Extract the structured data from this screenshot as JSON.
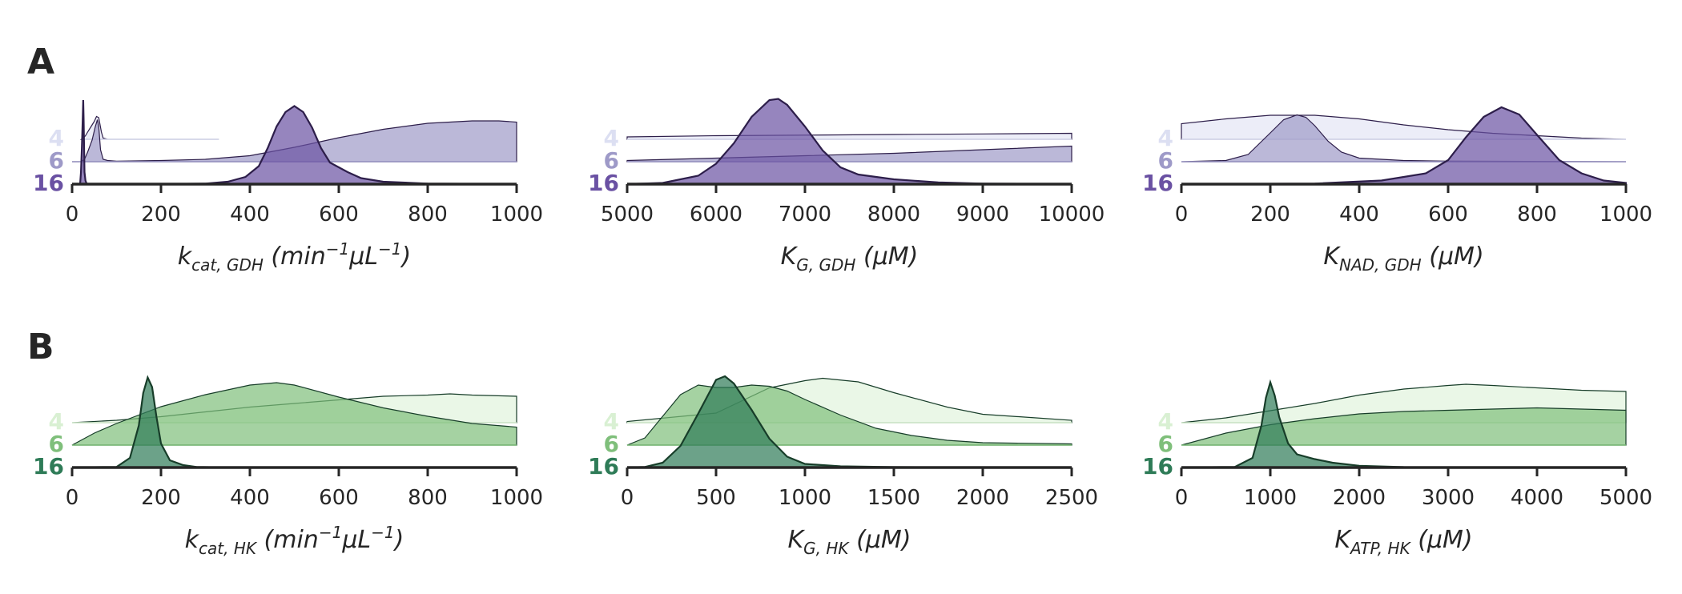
{
  "row_labels": [
    "A",
    "B"
  ],
  "colors": {
    "purple": {
      "4": "#dcdff2",
      "6": "#9e9ac8",
      "16": "#6a51a3",
      "outline": "#2d1e4a"
    },
    "green": {
      "4": "#d9f0d3",
      "6": "#7fbf7b",
      "16": "#2e7b57",
      "outline": "#173d29"
    }
  },
  "chart_data": [
    {
      "type": "area",
      "row": "A",
      "palette": "purple",
      "xlabel_main": "k",
      "xlabel_sub": "cat, GDH",
      "xlabel_unit_parts": [
        " (",
        "min",
        "−1",
        "μL",
        "−1",
        ")"
      ],
      "xlim": [
        0,
        1000
      ],
      "xticks": [
        "0",
        "200",
        "400",
        "600",
        "800",
        "1000"
      ],
      "legend": [
        "4",
        "6",
        "16"
      ],
      "series": [
        {
          "name": "4",
          "x": [
            21,
            25,
            30,
            35,
            40,
            45,
            50,
            55,
            60,
            66,
            70,
            80,
            100,
            150,
            200,
            250,
            300,
            330
          ],
          "y": [
            0,
            0.01,
            0.03,
            0.06,
            0.09,
            0.12,
            0.15,
            0.19,
            0.18,
            0.06,
            0.01,
            0,
            0,
            0,
            0,
            0,
            0,
            0
          ]
        },
        {
          "name": "6",
          "x": [
            0,
            20,
            28,
            35,
            45,
            52,
            57,
            60,
            64,
            70,
            80,
            100,
            200,
            300,
            400,
            500,
            600,
            700,
            800,
            900,
            960,
            1000
          ],
          "y": [
            0,
            0,
            0.02,
            0.08,
            0.18,
            0.29,
            0.35,
            0.29,
            0.1,
            0.02,
            0.01,
            0.005,
            0.01,
            0.02,
            0.05,
            0.12,
            0.2,
            0.27,
            0.32,
            0.34,
            0.34,
            0.33
          ]
        },
        {
          "name": "16",
          "x": [
            0,
            100,
            200,
            300,
            350,
            390,
            420,
            440,
            460,
            480,
            500,
            520,
            540,
            560,
            580,
            600,
            620,
            650,
            700,
            800,
            1000
          ],
          "y": [
            0,
            0,
            0,
            0.005,
            0.02,
            0.06,
            0.15,
            0.3,
            0.48,
            0.6,
            0.65,
            0.6,
            0.47,
            0.3,
            0.18,
            0.14,
            0.1,
            0.05,
            0.02,
            0.005,
            0
          ]
        },
        {
          "name": "16",
          "x": [
            18,
            20,
            22,
            24,
            25,
            26,
            27,
            28,
            30,
            32,
            35
          ],
          "y": [
            0,
            0.1,
            0.3,
            0.55,
            0.7,
            0.55,
            0.3,
            0.1,
            0.03,
            0.01,
            0
          ]
        }
      ]
    },
    {
      "type": "area",
      "row": "A",
      "palette": "purple",
      "xlabel_main": "K",
      "xlabel_sub": "G, GDH",
      "xlabel_unit_parts": [
        " (",
        "μM",
        ")"
      ],
      "xlim": [
        5000,
        10000
      ],
      "xticks": [
        "5000",
        "6000",
        "7000",
        "8000",
        "9000",
        "10000"
      ],
      "legend": [
        "4",
        "6",
        "16"
      ],
      "series": [
        {
          "name": "4",
          "x": [
            5000,
            6000,
            7000,
            8000,
            9000,
            10000
          ],
          "y": [
            0.02,
            0.03,
            0.035,
            0.04,
            0.045,
            0.05
          ]
        },
        {
          "name": "6",
          "x": [
            5000,
            6000,
            7000,
            8000,
            9000,
            10000
          ],
          "y": [
            0.01,
            0.03,
            0.05,
            0.07,
            0.1,
            0.13
          ]
        },
        {
          "name": "16",
          "x": [
            5000,
            5400,
            5800,
            6000,
            6200,
            6400,
            6600,
            6700,
            6800,
            7000,
            7200,
            7400,
            7600,
            8000,
            8500,
            9000,
            10000
          ],
          "y": [
            0,
            0.01,
            0.07,
            0.17,
            0.34,
            0.56,
            0.7,
            0.71,
            0.66,
            0.48,
            0.28,
            0.14,
            0.08,
            0.04,
            0.015,
            0.005,
            0
          ]
        }
      ]
    },
    {
      "type": "area",
      "row": "A",
      "palette": "purple",
      "xlabel_main": "K",
      "xlabel_sub": "NAD, GDH",
      "xlabel_unit_parts": [
        " (",
        "μM",
        ")"
      ],
      "xlim": [
        0,
        1000
      ],
      "xticks": [
        "0",
        "200",
        "400",
        "600",
        "800",
        "1000"
      ],
      "legend": [
        "4",
        "6",
        "16"
      ],
      "series": [
        {
          "name": "4",
          "x": [
            0,
            100,
            200,
            300,
            400,
            500,
            600,
            700,
            800,
            900,
            1000
          ],
          "y": [
            0.13,
            0.17,
            0.2,
            0.2,
            0.17,
            0.12,
            0.08,
            0.05,
            0.03,
            0.01,
            0
          ]
        },
        {
          "name": "6",
          "x": [
            0,
            100,
            150,
            200,
            230,
            260,
            280,
            300,
            330,
            360,
            400,
            500,
            600,
            1000
          ],
          "y": [
            0,
            0.01,
            0.06,
            0.24,
            0.35,
            0.39,
            0.37,
            0.3,
            0.17,
            0.08,
            0.03,
            0.01,
            0.005,
            0
          ]
        },
        {
          "name": "16",
          "x": [
            0,
            300,
            450,
            550,
            600,
            640,
            680,
            720,
            760,
            800,
            850,
            900,
            950,
            1000
          ],
          "y": [
            0,
            0.005,
            0.03,
            0.09,
            0.2,
            0.39,
            0.56,
            0.64,
            0.58,
            0.41,
            0.2,
            0.09,
            0.03,
            0.01
          ]
        }
      ]
    },
    {
      "type": "area",
      "row": "B",
      "palette": "green",
      "xlabel_main": "k",
      "xlabel_sub": "cat, HK",
      "xlabel_unit_parts": [
        " (",
        "min",
        "−1",
        "μL",
        "−1",
        ")"
      ],
      "xlim": [
        0,
        1000
      ],
      "xticks": [
        "0",
        "200",
        "400",
        "600",
        "800",
        "1000"
      ],
      "legend": [
        "4",
        "6",
        "16"
      ],
      "series": [
        {
          "name": "4",
          "x": [
            0,
            100,
            200,
            300,
            400,
            500,
            600,
            700,
            800,
            850,
            900,
            1000
          ],
          "y": [
            0,
            0.02,
            0.05,
            0.09,
            0.13,
            0.16,
            0.19,
            0.22,
            0.23,
            0.24,
            0.23,
            0.22
          ]
        },
        {
          "name": "6",
          "x": [
            0,
            50,
            100,
            200,
            300,
            400,
            460,
            500,
            600,
            700,
            800,
            900,
            1000
          ],
          "y": [
            0,
            0.1,
            0.18,
            0.32,
            0.42,
            0.5,
            0.52,
            0.5,
            0.4,
            0.31,
            0.24,
            0.18,
            0.15
          ]
        },
        {
          "name": "16",
          "x": [
            0,
            100,
            130,
            150,
            160,
            170,
            180,
            190,
            200,
            220,
            250,
            280,
            350
          ],
          "y": [
            0,
            0.005,
            0.08,
            0.35,
            0.62,
            0.75,
            0.67,
            0.42,
            0.2,
            0.06,
            0.02,
            0.005,
            0
          ]
        }
      ]
    },
    {
      "type": "area",
      "row": "B",
      "palette": "green",
      "xlabel_main": "K",
      "xlabel_sub": "G, HK",
      "xlabel_unit_parts": [
        " (",
        "μM",
        ")"
      ],
      "xlim": [
        0,
        2500
      ],
      "xticks": [
        "0",
        "500",
        "1000",
        "1500",
        "2000",
        "2500"
      ],
      "legend": [
        "4",
        "6",
        "16"
      ],
      "series": [
        {
          "name": "4",
          "x": [
            0,
            500,
            800,
            1000,
            1100,
            1300,
            1500,
            1800,
            2000,
            2500
          ],
          "y": [
            0.01,
            0.08,
            0.29,
            0.35,
            0.37,
            0.34,
            0.25,
            0.13,
            0.07,
            0.02
          ]
        },
        {
          "name": "6",
          "x": [
            0,
            100,
            200,
            300,
            400,
            500,
            600,
            700,
            800,
            900,
            1000,
            1200,
            1400,
            1600,
            1800,
            2000,
            2500
          ],
          "y": [
            0,
            0.06,
            0.24,
            0.42,
            0.5,
            0.48,
            0.48,
            0.5,
            0.49,
            0.45,
            0.38,
            0.25,
            0.14,
            0.08,
            0.04,
            0.02,
            0.01
          ]
        },
        {
          "name": "16",
          "x": [
            0,
            100,
            200,
            300,
            400,
            500,
            550,
            600,
            700,
            800,
            900,
            1000,
            1200,
            1500,
            2500
          ],
          "y": [
            0,
            0.005,
            0.04,
            0.18,
            0.45,
            0.73,
            0.76,
            0.7,
            0.48,
            0.24,
            0.09,
            0.03,
            0.01,
            0.003,
            0
          ]
        }
      ]
    },
    {
      "type": "area",
      "row": "B",
      "palette": "green",
      "xlabel_main": "K",
      "xlabel_sub": "ATP, HK",
      "xlabel_unit_parts": [
        " (",
        "μM",
        ")"
      ],
      "xlim": [
        0,
        5000
      ],
      "xticks": [
        "0",
        "1000",
        "2000",
        "3000",
        "4000",
        "5000"
      ],
      "legend": [
        "4",
        "6",
        "16"
      ],
      "series": [
        {
          "name": "4",
          "x": [
            0,
            500,
            1000,
            1500,
            2000,
            2500,
            3000,
            3200,
            3500,
            4000,
            4500,
            5000
          ],
          "y": [
            0,
            0.04,
            0.1,
            0.16,
            0.23,
            0.28,
            0.31,
            0.32,
            0.31,
            0.29,
            0.27,
            0.26
          ]
        },
        {
          "name": "6",
          "x": [
            0,
            500,
            1000,
            1500,
            2000,
            2500,
            3000,
            3500,
            4000,
            4500,
            5000
          ],
          "y": [
            0,
            0.1,
            0.17,
            0.22,
            0.26,
            0.28,
            0.29,
            0.3,
            0.31,
            0.3,
            0.29
          ]
        },
        {
          "name": "16",
          "x": [
            0,
            600,
            800,
            900,
            950,
            1000,
            1050,
            1100,
            1200,
            1300,
            1500,
            1700,
            2000,
            2500,
            5000
          ],
          "y": [
            0,
            0.005,
            0.08,
            0.35,
            0.58,
            0.71,
            0.6,
            0.42,
            0.2,
            0.11,
            0.07,
            0.04,
            0.015,
            0.003,
            0
          ]
        }
      ]
    }
  ]
}
